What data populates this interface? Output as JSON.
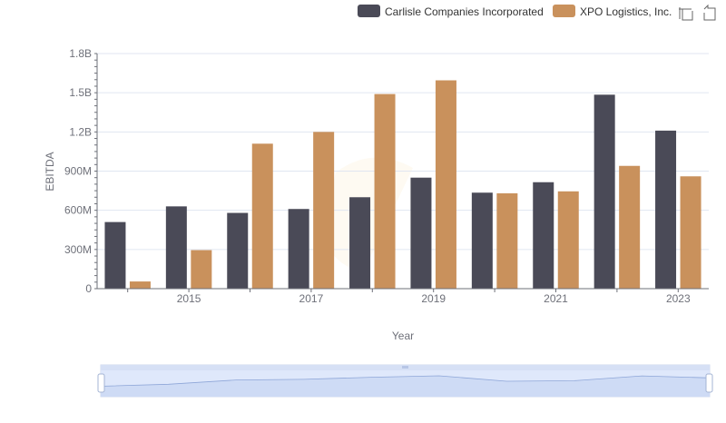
{
  "chart_data": {
    "type": "bar",
    "title": "",
    "xlabel": "Year",
    "ylabel": "EBITDA",
    "categories": [
      "2014",
      "2015",
      "2016",
      "2017",
      "2018",
      "2019",
      "2020",
      "2021",
      "2022",
      "2023"
    ],
    "x_tick_labels": [
      "2015",
      "2017",
      "2019",
      "2021",
      "2023"
    ],
    "y_tick_labels": [
      "0",
      "300M",
      "600M",
      "900M",
      "1.2B",
      "1.5B",
      "1.8B"
    ],
    "ylim": [
      0,
      1800000000
    ],
    "grid": true,
    "legend_position": "top-right",
    "series": [
      {
        "name": "Carlisle Companies Incorporated",
        "color": "#4a4a57",
        "values": [
          510000000,
          630000000,
          580000000,
          610000000,
          700000000,
          850000000,
          735000000,
          815000000,
          1485000000,
          1210000000
        ]
      },
      {
        "name": "XPO Logistics, Inc.",
        "color": "#c9915c",
        "values": [
          55000000,
          295000000,
          1110000000,
          1200000000,
          1490000000,
          1595000000,
          730000000,
          745000000,
          940000000,
          860000000
        ]
      }
    ]
  },
  "toolbox": {
    "zoom_icon": "zoom-icon",
    "reset_icon": "restore-icon"
  },
  "datazoom": {
    "start_percent": 0,
    "end_percent": 100
  }
}
